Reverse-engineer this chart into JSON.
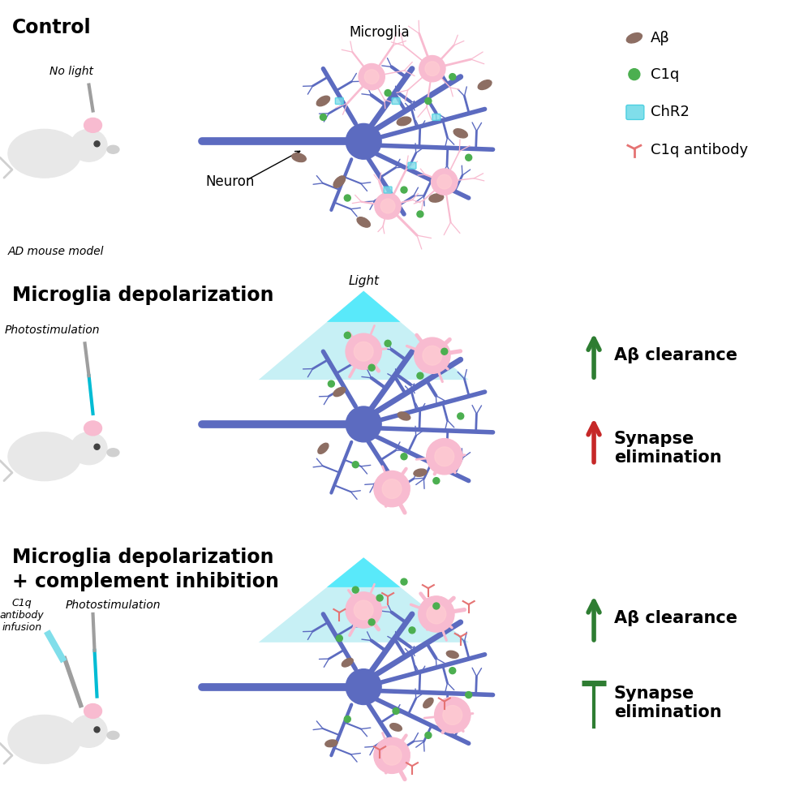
{
  "panel_titles": [
    "Control",
    "Microglia depolarization",
    "Microglia depolarization\n+ complement inhibition"
  ],
  "panel_backgrounds": [
    "#ffffff",
    "#fce8e8",
    "#f0f5e8"
  ],
  "neuron_color": "#5c6bc0",
  "microglia_body_color": "#f8bbd0",
  "microglia_center_color": "#ffcdd2",
  "amyloid_color": "#8d6e63",
  "amyloid_dark": "#6d4c41",
  "c1q_color": "#4caf50",
  "chr2_color": "#80deea",
  "chr2_edge": "#4dd0e1",
  "antibody_color": "#e57373",
  "arrow_green": "#2e7d32",
  "arrow_red": "#c62828",
  "light_cone_color": "#00bcd4",
  "light_cone_bright": "#00e5ff",
  "mouse_body": "#e8e8e8",
  "mouse_ear": "#f8bbd0",
  "mouse_snout": "#d0d0d0",
  "mouse_eye": "#424242",
  "electrode_gray": "#9e9e9e",
  "fiber_cyan": "#00bcd4",
  "title_fontsize": 17,
  "label_fontsize": 12,
  "legend_fontsize": 13,
  "bg_color": "#ffffff"
}
